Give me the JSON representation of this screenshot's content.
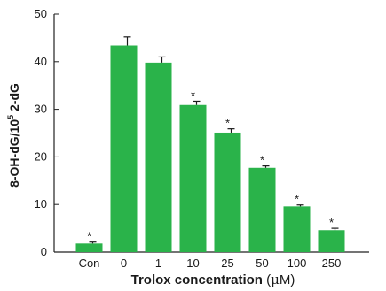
{
  "chart_data": {
    "type": "bar",
    "categories": [
      "Con",
      "0",
      "1",
      "10",
      "25",
      "50",
      "100",
      "250"
    ],
    "values": [
      1.8,
      43.4,
      39.8,
      30.9,
      25.1,
      17.7,
      9.6,
      4.6
    ],
    "errors": [
      0.3,
      1.8,
      1.2,
      0.8,
      0.8,
      0.4,
      0.3,
      0.4
    ],
    "significance_marks": [
      "*",
      "",
      "",
      "*",
      "*",
      "*",
      "*",
      "*"
    ],
    "ylim": [
      0,
      50
    ],
    "yticks": [
      0,
      10,
      20,
      30,
      40,
      50
    ],
    "xlabel": {
      "bold": "Trolox concentration",
      "unit_prefix": " (",
      "mu": "μ",
      "unit_suffix": "M)"
    },
    "ylabel": {
      "base": "8-OH-dG/10",
      "exponent": "5",
      "tail": " 2-dG"
    },
    "bar_color": "#2ab34a",
    "grid": false
  }
}
